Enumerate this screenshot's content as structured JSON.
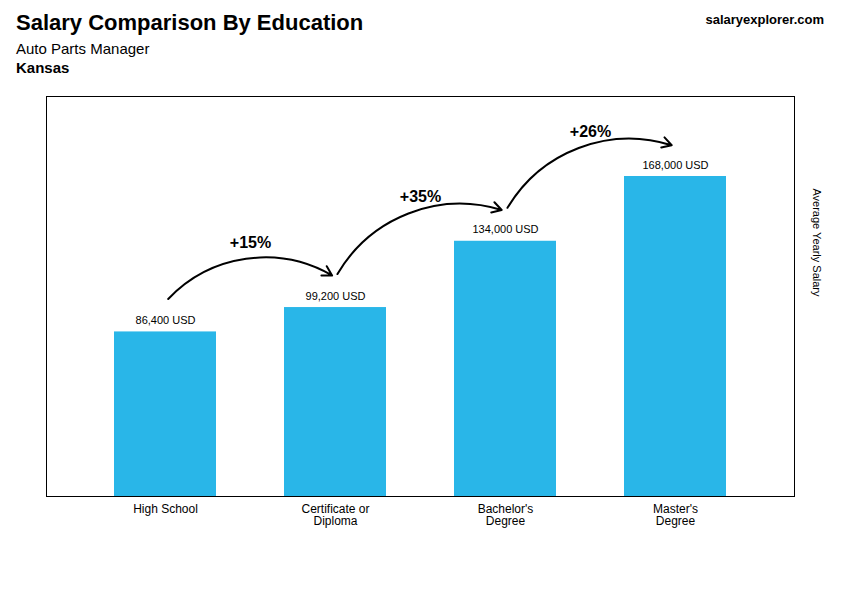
{
  "chart_data": {
    "type": "bar",
    "title": "Salary Comparison By Education",
    "subtitle": "Auto Parts Manager",
    "location": "Kansas",
    "watermark": "salaryexplorer.com",
    "ylabel": "Average Yearly Salary",
    "categories": [
      "High School",
      "Certificate or\nDiploma",
      "Bachelor's\nDegree",
      "Master's\nDegree"
    ],
    "values": [
      86400,
      99200,
      134000,
      168000
    ],
    "value_labels": [
      "86,400 USD",
      "99,200 USD",
      "134,000 USD",
      "168,000 USD"
    ],
    "data_labels": true,
    "color": "#29b6e8",
    "ylim": [
      0,
      210000
    ],
    "tick_labels": "x",
    "grid": false,
    "annotations": [
      {
        "text": "+15%",
        "from": "High School",
        "to": "Certificate or\nDiploma"
      },
      {
        "text": "+35%",
        "from": "Certificate or\nDiploma",
        "to": "Bachelor's\nDegree"
      },
      {
        "text": "+26%",
        "from": "Bachelor's\nDegree",
        "to": "Master's\nDegree"
      }
    ]
  }
}
